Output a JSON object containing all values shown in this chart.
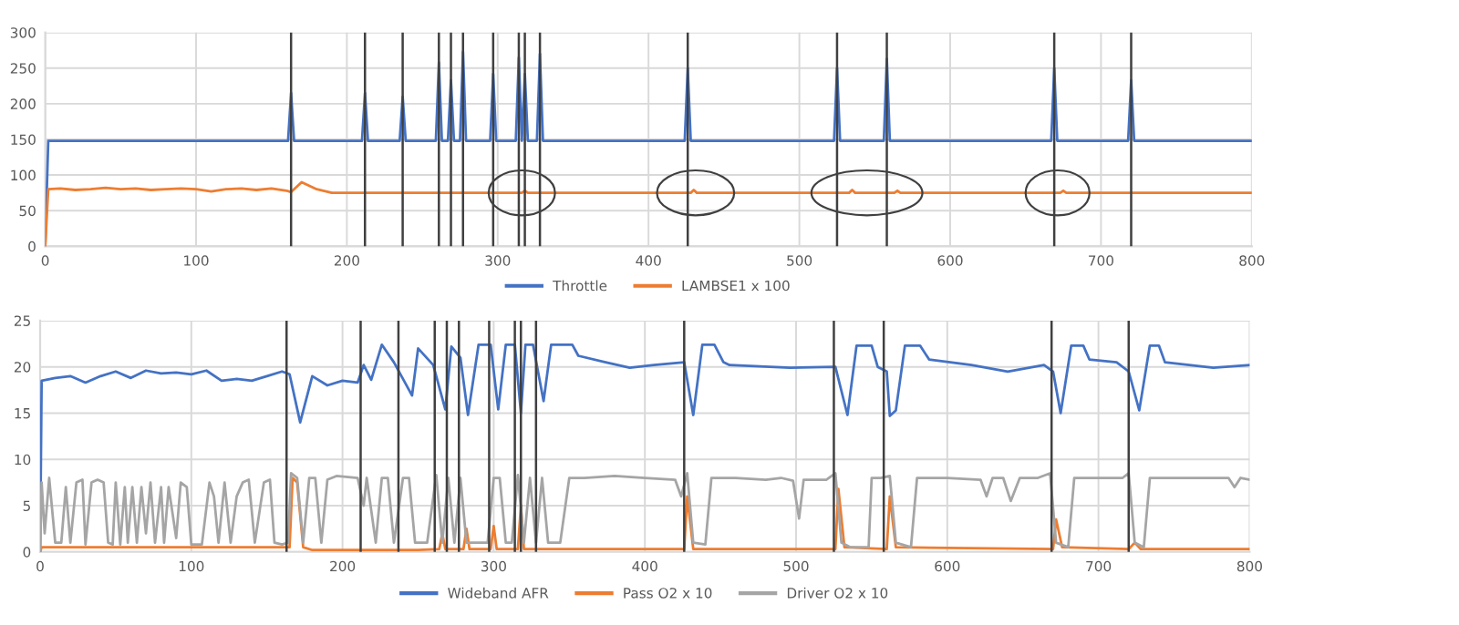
{
  "chart_data": [
    {
      "type": "line",
      "xlim": [
        0,
        800
      ],
      "xticks": [
        0,
        100,
        200,
        300,
        400,
        500,
        600,
        700,
        800
      ],
      "ylim": [
        0,
        300
      ],
      "yticks": [
        0,
        50,
        100,
        150,
        200,
        250,
        300
      ],
      "grid": true,
      "legend": "bottom",
      "marker": "none",
      "line_style": "solid",
      "series": [
        {
          "name": "Throttle",
          "color": "#4472c4",
          "x": [
            0,
            2,
            161,
            163,
            165,
            210,
            212,
            214,
            235,
            237,
            239,
            259,
            261,
            263,
            267,
            269,
            271,
            275,
            277,
            279,
            295,
            297,
            299,
            312,
            314,
            316,
            318,
            320,
            326,
            328,
            330,
            424,
            426,
            428,
            523,
            525,
            527,
            556,
            558,
            560,
            667,
            669,
            671,
            718,
            720,
            722,
            800
          ],
          "values": [
            0,
            148,
            148,
            215,
            148,
            148,
            215,
            148,
            148,
            210,
            148,
            148,
            258,
            148,
            148,
            233,
            148,
            148,
            273,
            148,
            148,
            242,
            148,
            148,
            265,
            148,
            242,
            148,
            148,
            270,
            148,
            148,
            250,
            148,
            148,
            250,
            148,
            148,
            263,
            148,
            148,
            250,
            148,
            148,
            233,
            148,
            148
          ]
        },
        {
          "name": "LAMBSE1 x 100",
          "color": "#ed7d31",
          "x": [
            0,
            2,
            10,
            20,
            30,
            40,
            50,
            60,
            70,
            80,
            90,
            100,
            110,
            120,
            130,
            140,
            150,
            160,
            163,
            170,
            180,
            190,
            316,
            318,
            320,
            428,
            430,
            432,
            533,
            535,
            537,
            563,
            565,
            567,
            673,
            675,
            677,
            800
          ],
          "values": [
            0,
            80,
            81,
            79,
            80,
            82,
            80,
            81,
            79,
            80,
            81,
            80,
            77,
            80,
            81,
            79,
            81,
            78,
            76,
            90,
            80,
            75,
            75,
            78,
            75,
            75,
            79,
            75,
            75,
            79,
            75,
            75,
            78,
            75,
            75,
            78,
            75,
            75
          ]
        }
      ],
      "ref_lines": [
        {
          "axis": "x",
          "value": 163,
          "color": "#404040"
        },
        {
          "axis": "x",
          "value": 212,
          "color": "#404040"
        },
        {
          "axis": "x",
          "value": 237,
          "color": "#404040"
        },
        {
          "axis": "x",
          "value": 261,
          "color": "#404040"
        },
        {
          "axis": "x",
          "value": 269,
          "color": "#404040"
        },
        {
          "axis": "x",
          "value": 277,
          "color": "#404040"
        },
        {
          "axis": "x",
          "value": 297,
          "color": "#404040"
        },
        {
          "axis": "x",
          "value": 314,
          "color": "#404040"
        },
        {
          "axis": "x",
          "value": 318,
          "color": "#404040"
        },
        {
          "axis": "x",
          "value": 328,
          "color": "#404040"
        },
        {
          "axis": "x",
          "value": 426,
          "color": "#404040"
        },
        {
          "axis": "x",
          "value": 525,
          "color": "#404040"
        },
        {
          "axis": "x",
          "value": 558,
          "color": "#404040"
        },
        {
          "axis": "x",
          "value": 669,
          "color": "#404040"
        },
        {
          "axis": "x",
          "value": 720,
          "color": "#404040"
        }
      ]
    },
    {
      "type": "line",
      "xlim": [
        0,
        800
      ],
      "xticks": [
        0,
        100,
        200,
        300,
        400,
        500,
        600,
        700,
        800
      ],
      "ylim": [
        0,
        25
      ],
      "yticks": [
        0,
        5,
        10,
        15,
        20,
        25
      ],
      "grid": true,
      "legend": "bottom",
      "marker": "none",
      "line_style": "solid",
      "series": [
        {
          "name": "Wideband AFR",
          "color": "#4472c4",
          "x": [
            0,
            1,
            10,
            20,
            30,
            40,
            50,
            60,
            70,
            80,
            90,
            100,
            110,
            120,
            130,
            140,
            150,
            160,
            165,
            172,
            180,
            190,
            200,
            210,
            214,
            219,
            226,
            234,
            246,
            250,
            260,
            268,
            272,
            278,
            283,
            290,
            298,
            303,
            308,
            314,
            318,
            321,
            326,
            333,
            338,
            352,
            356,
            374,
            390,
            406,
            426,
            432,
            438,
            446,
            452,
            456,
            496,
            526,
            534,
            540,
            550,
            554,
            560,
            562,
            566,
            572,
            582,
            588,
            616,
            640,
            664,
            670,
            675,
            682,
            690,
            694,
            712,
            720,
            727,
            734,
            740,
            744,
            776,
            800
          ],
          "values": [
            0,
            18.5,
            18.8,
            19,
            18.3,
            19,
            19.5,
            18.8,
            19.6,
            19.3,
            19.4,
            19.2,
            19.6,
            18.5,
            18.7,
            18.5,
            19,
            19.5,
            19.2,
            14,
            19,
            18,
            18.5,
            18.3,
            20.2,
            18.6,
            22.4,
            20.5,
            16.9,
            22,
            20.2,
            15.4,
            22.2,
            21,
            14.8,
            22.4,
            22.4,
            15.4,
            22.4,
            22.4,
            15,
            22.4,
            22.4,
            16.3,
            22.4,
            22.4,
            21.2,
            20.5,
            19.9,
            20.2,
            20.5,
            14.8,
            22.4,
            22.4,
            20.5,
            20.2,
            19.9,
            20,
            14.8,
            22.3,
            22.3,
            20,
            19.5,
            14.7,
            15.3,
            22.3,
            22.3,
            20.8,
            20.2,
            19.5,
            20.2,
            19.5,
            15,
            22.3,
            22.3,
            20.8,
            20.5,
            19.5,
            15.3,
            22.3,
            22.3,
            20.5,
            19.9,
            20.2
          ]
        },
        {
          "name": "Pass O2 x 10",
          "color": "#ed7d31",
          "x": [
            0,
            1,
            165,
            167,
            170,
            174,
            180,
            250,
            264,
            266,
            268,
            280,
            282,
            284,
            298,
            300,
            302,
            316,
            318,
            320,
            340,
            426,
            428,
            432,
            526,
            528,
            532,
            560,
            562,
            566,
            670,
            672,
            676,
            720,
            724,
            728,
            800
          ],
          "values": [
            0,
            0.5,
            0.5,
            8,
            7.5,
            0.5,
            0.2,
            0.2,
            0.3,
            2,
            0.3,
            0.3,
            2.5,
            0.3,
            0.3,
            2.8,
            0.3,
            0.3,
            5,
            0.3,
            0.3,
            0.3,
            6,
            0.3,
            0.3,
            6.8,
            0.5,
            0.3,
            6,
            0.5,
            0.3,
            3.5,
            0.5,
            0.3,
            1,
            0.3,
            0.3
          ]
        },
        {
          "name": "Driver O2 x 10",
          "color": "#a5a5a5",
          "x": [
            0,
            1,
            3,
            6,
            10,
            14,
            17,
            20,
            24,
            28,
            30,
            34,
            38,
            42,
            45,
            48,
            50,
            53,
            56,
            58,
            61,
            64,
            67,
            70,
            73,
            76,
            80,
            82,
            85,
            90,
            93,
            97,
            100,
            107,
            112,
            115,
            118,
            122,
            126,
            130,
            134,
            138,
            142,
            148,
            152,
            155,
            160,
            164,
            166,
            170,
            174,
            178,
            182,
            186,
            190,
            196,
            210,
            214,
            216,
            222,
            226,
            230,
            234,
            240,
            244,
            248,
            256,
            262,
            266,
            270,
            274,
            278,
            282,
            288,
            296,
            300,
            304,
            308,
            312,
            316,
            320,
            324,
            328,
            332,
            336,
            344,
            350,
            360,
            380,
            400,
            420,
            424,
            428,
            432,
            440,
            444,
            460,
            480,
            490,
            498,
            502,
            505,
            520,
            526,
            530,
            536,
            548,
            550,
            556,
            562,
            566,
            576,
            580,
            600,
            622,
            626,
            630,
            637,
            642,
            648,
            660,
            668,
            672,
            680,
            684,
            700,
            716,
            720,
            724,
            730,
            734,
            760,
            786,
            790,
            794,
            800
          ],
          "values": [
            0,
            7.5,
            2,
            8,
            1,
            1,
            7,
            1,
            7.5,
            7.8,
            0.8,
            7.5,
            7.8,
            7.5,
            1,
            0.8,
            7.5,
            0.8,
            7,
            1,
            7,
            1,
            7,
            2,
            7.5,
            1,
            7,
            1,
            7,
            1.5,
            7.5,
            7,
            0.8,
            0.8,
            7.5,
            6,
            1,
            7.5,
            1,
            6,
            7.5,
            7.8,
            1,
            7.5,
            7.8,
            1,
            0.8,
            1,
            8.5,
            8,
            1,
            8,
            8,
            1,
            7.8,
            8.2,
            8,
            5,
            8,
            1,
            8,
            8,
            1,
            8,
            8,
            1,
            1,
            8.3,
            1,
            8,
            1,
            8,
            1,
            1,
            1,
            8,
            8,
            1,
            1,
            8.3,
            1,
            8,
            1,
            8,
            1,
            1,
            8,
            8,
            8.2,
            8,
            7.8,
            6,
            8.5,
            1,
            0.8,
            8,
            8,
            7.8,
            8,
            7.7,
            3.6,
            7.8,
            7.8,
            8.5,
            1,
            0.5,
            0.5,
            8,
            8,
            8.2,
            1,
            0.5,
            8,
            8,
            7.8,
            6,
            8,
            8,
            5.5,
            8,
            8,
            8.5,
            1,
            0.5,
            8,
            8,
            8,
            8.5,
            1,
            0.5,
            8,
            8,
            8,
            7,
            8,
            7.8
          ]
        }
      ],
      "ref_lines": [
        {
          "axis": "x",
          "value": 163,
          "color": "#404040"
        },
        {
          "axis": "x",
          "value": 212,
          "color": "#404040"
        },
        {
          "axis": "x",
          "value": 237,
          "color": "#404040"
        },
        {
          "axis": "x",
          "value": 261,
          "color": "#404040"
        },
        {
          "axis": "x",
          "value": 269,
          "color": "#404040"
        },
        {
          "axis": "x",
          "value": 277,
          "color": "#404040"
        },
        {
          "axis": "x",
          "value": 297,
          "color": "#404040"
        },
        {
          "axis": "x",
          "value": 314,
          "color": "#404040"
        },
        {
          "axis": "x",
          "value": 318,
          "color": "#404040"
        },
        {
          "axis": "x",
          "value": 328,
          "color": "#404040"
        },
        {
          "axis": "x",
          "value": 426,
          "color": "#404040"
        },
        {
          "axis": "x",
          "value": 525,
          "color": "#404040"
        },
        {
          "axis": "x",
          "value": 558,
          "color": "#404040"
        },
        {
          "axis": "x",
          "value": 669,
          "color": "#404040"
        },
        {
          "axis": "x",
          "value": 720,
          "color": "#404040"
        }
      ]
    }
  ]
}
